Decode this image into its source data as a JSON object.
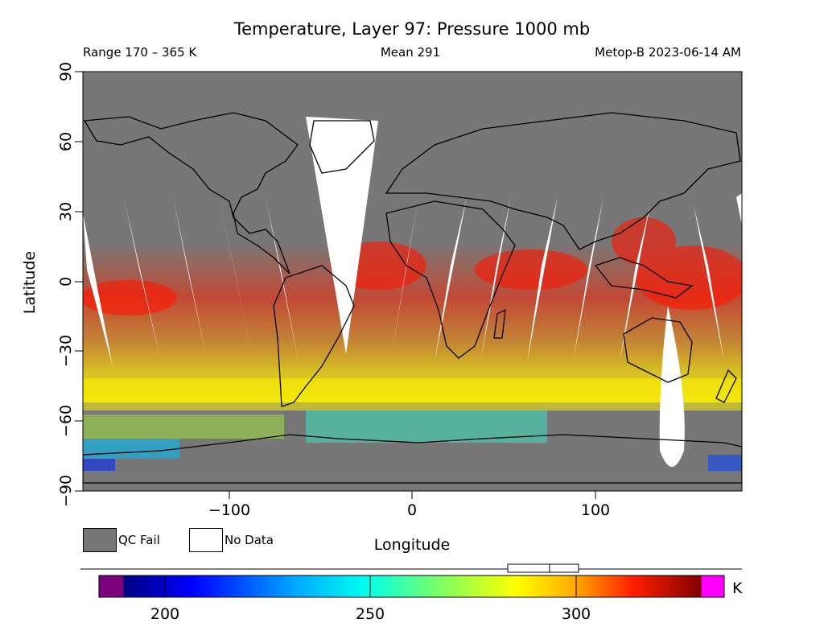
{
  "header": {
    "title": "Temperature, Layer 97: Pressure 1000 mb",
    "range": "Range 170 – 365 K",
    "mean": "Mean 291",
    "source": "Metop-B 2023-06-14 AM"
  },
  "axes": {
    "xlabel": "Longitude",
    "ylabel": "Latitude",
    "x_ticks": [
      "−100",
      "0",
      "100"
    ],
    "y_ticks": [
      "90",
      "60",
      "30",
      "0",
      "−30",
      "−60",
      "−90"
    ],
    "xlim": [
      -180,
      180
    ],
    "ylim": [
      -90,
      90
    ]
  },
  "legend": {
    "qc_fail": "QC Fail",
    "no_data": "No Data",
    "qc_fail_color": "#777777",
    "no_data_color": "#ffffff"
  },
  "colorbar": {
    "unit": "K",
    "ticks": [
      "200",
      "250",
      "300"
    ],
    "colors": [
      "#7b007b",
      "#00007f",
      "#0000ff",
      "#0080ff",
      "#00ffff",
      "#60ff90",
      "#ffff00",
      "#ff9900",
      "#ff0000",
      "#7f0000",
      "#ff00ff"
    ]
  }
}
